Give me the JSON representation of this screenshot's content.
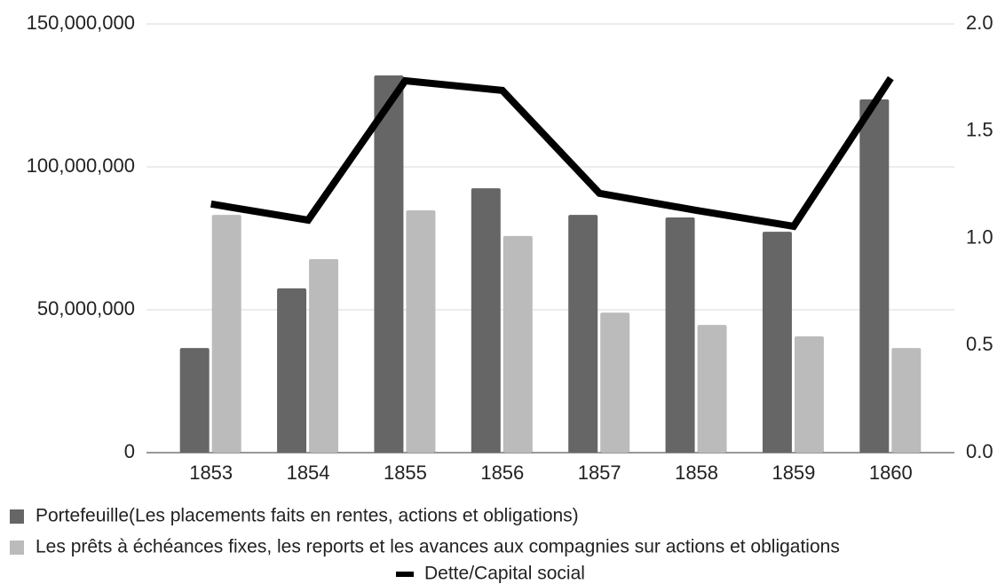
{
  "chart_data": {
    "type": "bar",
    "categories": [
      "1853",
      "1854",
      "1855",
      "1856",
      "1857",
      "1858",
      "1859",
      "1860"
    ],
    "series": [
      {
        "name": "Portefeuille(Les placements faits en rentes, actions et obligations)",
        "color": "#666666",
        "type": "bar",
        "values": [
          36600000,
          57500000,
          132000000,
          92500000,
          83200000,
          82300000,
          77300000,
          123600000
        ]
      },
      {
        "name": "Les prêts à échéances fixes, les reports et les avances aux compagnies sur actions et obligations",
        "color": "#bbbbbb",
        "type": "bar",
        "values": [
          83200000,
          67700000,
          84800000,
          75800000,
          49000000,
          44700000,
          40700000,
          36600000
        ]
      },
      {
        "name": "Dette/Capital social",
        "color": "#000000",
        "type": "line",
        "axis": "y2",
        "values": [
          1.16,
          1.085,
          1.735,
          1.69,
          1.21,
          1.13,
          1.056,
          1.747
        ]
      }
    ],
    "ylim": [
      0,
      150000000
    ],
    "yticks": [
      {
        "value": 0,
        "label": "0"
      },
      {
        "value": 50000000,
        "label": "50,000,000"
      },
      {
        "value": 100000000,
        "label": "100,000,000"
      },
      {
        "value": 150000000,
        "label": "150,000,000"
      }
    ],
    "y2lim": [
      0,
      2
    ],
    "y2ticks": [
      {
        "value": 0,
        "label": "0.0"
      },
      0.5,
      {
        "value": 1,
        "label": "1.0"
      },
      1.5,
      {
        "value": 2,
        "label": "2.0"
      }
    ],
    "grid": true,
    "legend": "bottom"
  }
}
